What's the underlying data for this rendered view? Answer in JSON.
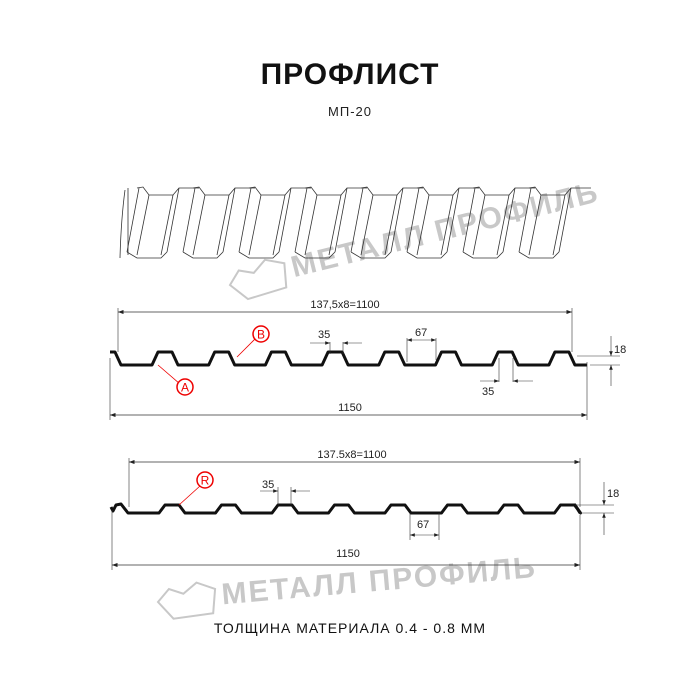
{
  "header": {
    "title": "ПРОФЛИСТ",
    "subtitle": "МП-20"
  },
  "watermark": {
    "text": "МЕТАЛЛ ПРОФИЛЬ"
  },
  "profile1": {
    "pitch_label": "137,5x8=1100",
    "width_label": "1150",
    "top_width_label": "35",
    "bottom_width_label": "35",
    "gap_label": "67",
    "height_label": "18",
    "marker_a": "A",
    "marker_b": "B"
  },
  "profile2": {
    "pitch_label": "137.5x8=1100",
    "width_label": "1150",
    "top_width_label": "35",
    "gap_label": "67",
    "height_label": "18",
    "marker_r": "R"
  },
  "footer": {
    "text": "ТОЛЩИНА МАТЕРИАЛА 0.4 - 0.8 ММ"
  },
  "colors": {
    "profile": "#111111",
    "marker": "#e00000",
    "watermark": "#c8c8c8"
  }
}
